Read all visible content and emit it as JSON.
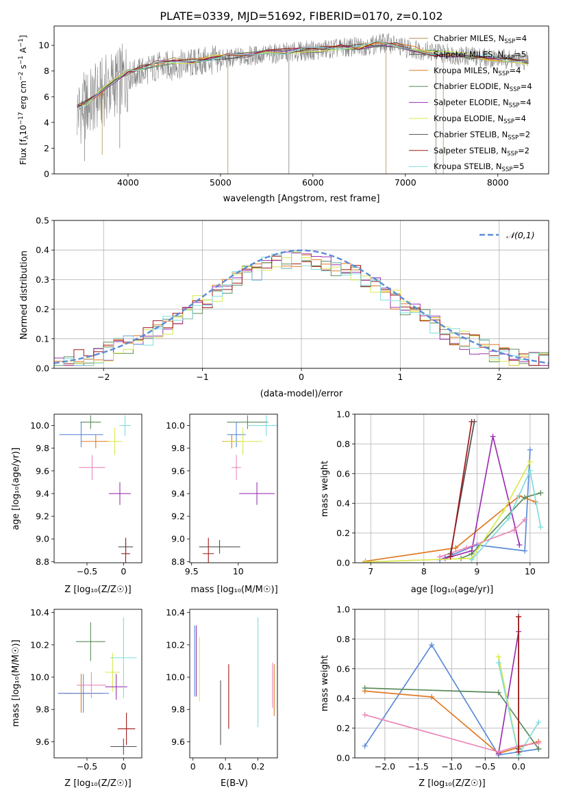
{
  "figure_title": "PLATE=0339, MJD=51692, FIBERID=0170, z=0.102",
  "chart_data": [
    {
      "type": "line",
      "id": "spectrum",
      "title": "PLATE=0339, MJD=51692, FIBERID=0170, z=0.102",
      "xlabel": "wavelength [Angstrom, rest frame]",
      "ylabel": "Flux [fλ10⁻¹⁷ erg cm⁻² s⁻¹ A⁻¹]",
      "xlim": [
        3200,
        8550
      ],
      "ylim": [
        0,
        11.5
      ],
      "xticks": [
        4000,
        5000,
        6000,
        7000,
        8000
      ],
      "yticks": [
        0,
        2,
        4,
        6,
        8,
        10
      ],
      "grid": false,
      "legend_position": "top-right",
      "data_trace": {
        "color": "#808080",
        "x_start": 3450,
        "x_end": 8330,
        "continuum": [
          [
            3450,
            4.8
          ],
          [
            3600,
            5.6
          ],
          [
            3800,
            6.8
          ],
          [
            4000,
            7.6
          ],
          [
            4300,
            8.3
          ],
          [
            4700,
            8.6
          ],
          [
            5000,
            8.9
          ],
          [
            5500,
            9.3
          ],
          [
            6000,
            9.6
          ],
          [
            6500,
            9.9
          ],
          [
            6800,
            10.2
          ],
          [
            7000,
            9.8
          ],
          [
            7300,
            9.5
          ],
          [
            7600,
            9.2
          ],
          [
            8000,
            9.0
          ],
          [
            8330,
            8.8
          ]
        ]
      },
      "series": [
        {
          "name": "Chabrier MILES, N_SSP=4",
          "color": "#b28b4e"
        },
        {
          "name": "Salpeter MILES, N_SSP=5",
          "color": "#6a6a6a"
        },
        {
          "name": "Kroupa MILES, N_SSP=4",
          "color": "#e07820"
        },
        {
          "name": "Chabrier ELODIE, N_SSP=4",
          "color": "#5a8a5a"
        },
        {
          "name": "Salpeter ELODIE, N_SSP=4",
          "color": "#9b30b0"
        },
        {
          "name": "Kroupa ELODIE, N_SSP=4",
          "color": "#d8e84a"
        },
        {
          "name": "Chabrier STELIB, N_SSP=2",
          "color": "#505050"
        },
        {
          "name": "Salpeter STELIB, N_SSP=2",
          "color": "#a01818"
        },
        {
          "name": "Kroupa STELIB, N_SSP=5",
          "color": "#7fdcdc"
        }
      ],
      "model_x": [
        3450,
        3550,
        3700,
        3850,
        4000,
        4150,
        4300,
        4500,
        4700,
        4900,
        5100,
        5300,
        5500,
        5700,
        5900,
        6100,
        6300,
        6500,
        6700,
        6900,
        7100,
        7300,
        7500,
        7700,
        7900,
        8100,
        8330
      ],
      "model_y": [
        5.2,
        5.5,
        6.3,
        7.2,
        7.9,
        8.3,
        8.6,
        8.8,
        8.8,
        9.0,
        9.2,
        9.3,
        9.4,
        9.5,
        9.6,
        9.7,
        9.8,
        9.9,
        10.1,
        10.0,
        9.7,
        9.4,
        9.3,
        9.1,
        9.0,
        8.9,
        8.7
      ]
    },
    {
      "type": "line",
      "id": "residuals",
      "xlabel": "(data-model)/error",
      "ylabel": "Normed distribution",
      "xlim": [
        -2.5,
        2.5
      ],
      "ylim": [
        0,
        0.5
      ],
      "xticks": [
        -2,
        -1,
        0,
        1,
        2
      ],
      "yticks": [
        0.0,
        0.1,
        0.2,
        0.3,
        0.4,
        0.5
      ],
      "grid": true,
      "legend_position": "top-right",
      "legend": "𝒩(0,1)",
      "gaussian_color": "#5b8ad8",
      "bin_width": 0.1,
      "hist_colors": [
        "#e07820",
        "#5a8a5a",
        "#9b30b0",
        "#d8e84a",
        "#a01818",
        "#7fdcdc"
      ]
    },
    {
      "type": "scatter",
      "id": "age-vs-metallicity",
      "xlabel": "Z [log₁₀(Z/Z☉)]",
      "ylabel": "age  [log₁₀(age/yr)]",
      "xlim": [
        -0.95,
        0.25
      ],
      "ylim": [
        8.79,
        10.1
      ],
      "xticks": [
        -0.5,
        0.0
      ],
      "yticks": [
        8.8,
        9.0,
        9.2,
        9.4,
        9.6,
        9.8,
        10.0
      ],
      "points": [
        {
          "x": -0.45,
          "y": 10.03,
          "xerr": 0.14,
          "yerr": 0.06,
          "color": "#5a8a5a"
        },
        {
          "x": -0.38,
          "y": 9.86,
          "xerr": 0.2,
          "yerr": 0.06,
          "color": "#e07820"
        },
        {
          "x": -0.58,
          "y": 9.92,
          "xerr": 0.3,
          "yerr": 0.11,
          "color": "#5b8ad8"
        },
        {
          "x": -0.43,
          "y": 9.63,
          "xerr": 0.18,
          "yerr": 0.11,
          "color": "#e887b8"
        },
        {
          "x": -0.12,
          "y": 9.86,
          "xerr": 0.1,
          "yerr": 0.12,
          "color": "#d8e84a"
        },
        {
          "x": -0.05,
          "y": 9.4,
          "xerr": 0.15,
          "yerr": 0.1,
          "color": "#9b30b0"
        },
        {
          "x": 0.02,
          "y": 10.0,
          "xerr": 0.08,
          "yerr": 0.09,
          "color": "#7fdcdc"
        },
        {
          "x": 0.03,
          "y": 8.93,
          "xerr": 0.1,
          "yerr": 0.06,
          "color": "#505050"
        },
        {
          "x": 0.03,
          "y": 8.87,
          "xerr": 0.06,
          "yerr": 0.14,
          "color": "#a01818"
        }
      ]
    },
    {
      "type": "scatter",
      "id": "age-vs-mass",
      "xlabel": "mass [log₁₀(M/M☉)]",
      "xlim": [
        9.48,
        10.42
      ],
      "ylim": [
        8.79,
        10.1
      ],
      "xticks": [
        9.5,
        10.0
      ],
      "yticks": [
        8.8,
        9.0,
        9.2,
        9.4,
        9.6,
        9.8,
        10.0
      ],
      "points": [
        {
          "x": 10.1,
          "y": 10.03,
          "xerr": 0.22,
          "yerr": 0.06,
          "color": "#5a8a5a"
        },
        {
          "x": 9.93,
          "y": 9.86,
          "xerr": 0.1,
          "yerr": 0.06,
          "color": "#e07820"
        },
        {
          "x": 9.98,
          "y": 9.92,
          "xerr": 0.1,
          "yerr": 0.11,
          "color": "#5b8ad8"
        },
        {
          "x": 9.98,
          "y": 9.63,
          "xerr": 0.05,
          "yerr": 0.11,
          "color": "#e887b8"
        },
        {
          "x": 10.05,
          "y": 9.86,
          "xerr": 0.21,
          "yerr": 0.12,
          "color": "#d8e84a"
        },
        {
          "x": 10.2,
          "y": 9.4,
          "xerr": 0.19,
          "yerr": 0.1,
          "color": "#9b30b0"
        },
        {
          "x": 10.3,
          "y": 10.0,
          "xerr": 0.2,
          "yerr": 0.09,
          "color": "#7fdcdc"
        },
        {
          "x": 9.8,
          "y": 8.93,
          "xerr": 0.22,
          "yerr": 0.06,
          "color": "#505050"
        },
        {
          "x": 9.68,
          "y": 8.87,
          "xerr": 0.06,
          "yerr": 0.14,
          "color": "#a01818"
        }
      ]
    },
    {
      "type": "line",
      "id": "weight-vs-age",
      "xlabel": "age  [log₁₀(age/yr)]",
      "ylabel": "mass weight",
      "xlim": [
        6.7,
        10.35
      ],
      "ylim": [
        0,
        1.0
      ],
      "xticks": [
        7,
        8,
        9,
        10
      ],
      "yticks": [
        0.0,
        0.2,
        0.4,
        0.6,
        0.8,
        1.0
      ],
      "grid": true,
      "series": [
        {
          "color": "#5b8ad8",
          "x": [
            8.3,
            9.0,
            9.9,
            10.0
          ],
          "y": [
            0.02,
            0.12,
            0.08,
            0.76
          ]
        },
        {
          "color": "#e07820",
          "x": [
            6.9,
            8.6,
            9.8,
            10.1
          ],
          "y": [
            0.01,
            0.1,
            0.45,
            0.41
          ]
        },
        {
          "color": "#5a8a5a",
          "x": [
            8.7,
            8.9,
            9.9,
            10.2
          ],
          "y": [
            0.03,
            0.06,
            0.44,
            0.47
          ]
        },
        {
          "color": "#9b30b0",
          "x": [
            8.4,
            8.9,
            9.3,
            9.8
          ],
          "y": [
            0.03,
            0.08,
            0.85,
            0.12
          ]
        },
        {
          "color": "#d8e84a",
          "x": [
            6.9,
            8.9,
            9.5,
            10.0
          ],
          "y": [
            0.005,
            0.03,
            0.35,
            0.68
          ]
        },
        {
          "color": "#7fdcdc",
          "x": [
            8.9,
            9.6,
            10.0,
            10.2
          ],
          "y": [
            0.02,
            0.3,
            0.62,
            0.24
          ]
        },
        {
          "color": "#e887b8",
          "x": [
            8.3,
            8.8,
            9.7,
            9.9
          ],
          "y": [
            0.04,
            0.1,
            0.22,
            0.29
          ]
        },
        {
          "color": "#505050",
          "x": [
            8.5,
            8.95
          ],
          "y": [
            0.06,
            0.95
          ]
        },
        {
          "color": "#a01818",
          "x": [
            8.5,
            8.9
          ],
          "y": [
            0.04,
            0.95
          ]
        }
      ]
    },
    {
      "type": "scatter",
      "id": "mass-vs-metallicity",
      "xlabel": "Z [log₁₀(Z/Z☉)]",
      "ylabel": "mass [log₁₀(M/M☉)]",
      "xlim": [
        -0.95,
        0.25
      ],
      "ylim": [
        9.5,
        10.42
      ],
      "xticks": [
        -0.5,
        0.0
      ],
      "yticks": [
        9.6,
        9.8,
        10.0,
        10.2,
        10.4
      ],
      "points": [
        {
          "x": -0.45,
          "y": 10.22,
          "xerr": 0.2,
          "yerr": 0.12,
          "color": "#5a8a5a"
        },
        {
          "x": -0.58,
          "y": 9.9,
          "xerr": 0.3,
          "yerr": 0.12,
          "color": "#e07820"
        },
        {
          "x": -0.55,
          "y": 9.9,
          "xerr": 0.35,
          "yerr": 0.12,
          "color": "#5b8ad8"
        },
        {
          "x": -0.44,
          "y": 9.95,
          "xerr": 0.2,
          "yerr": 0.08,
          "color": "#e887b8"
        },
        {
          "x": -0.15,
          "y": 10.03,
          "xerr": 0.1,
          "yerr": 0.12,
          "color": "#d8e84a"
        },
        {
          "x": -0.1,
          "y": 9.94,
          "xerr": 0.15,
          "yerr": 0.08,
          "color": "#9b30b0"
        },
        {
          "x": 0.0,
          "y": 10.12,
          "xerr": 0.18,
          "yerr": 0.25,
          "color": "#7fdcdc"
        },
        {
          "x": 0.0,
          "y": 9.57,
          "xerr": 0.18,
          "yerr": 0.05,
          "color": "#505050"
        },
        {
          "x": 0.04,
          "y": 9.68,
          "xerr": 0.12,
          "yerr": 0.1,
          "color": "#a01818"
        }
      ]
    },
    {
      "type": "scatter",
      "id": "mass-vs-extinction",
      "xlabel": "E(B-V)",
      "xlim": [
        -0.01,
        0.26
      ],
      "ylim": [
        9.5,
        10.42
      ],
      "xticks": [
        0.0,
        0.1,
        0.2
      ],
      "yticks": [
        9.6,
        9.8,
        10.0,
        10.2,
        10.4
      ],
      "points": [
        {
          "x": 0.005,
          "y": 10.1,
          "yerr": 0.22,
          "color": "#5b8ad8"
        },
        {
          "x": 0.01,
          "y": 10.1,
          "yerr": 0.22,
          "color": "#9b30b0"
        },
        {
          "x": 0.02,
          "y": 10.05,
          "yerr": 0.2,
          "color": "#d8e84a"
        },
        {
          "x": 0.085,
          "y": 9.78,
          "yerr": 0.2,
          "color": "#505050"
        },
        {
          "x": 0.11,
          "y": 9.88,
          "yerr": 0.2,
          "color": "#a01818"
        },
        {
          "x": 0.2,
          "y": 10.03,
          "yerr": 0.34,
          "color": "#7fdcdc"
        },
        {
          "x": 0.245,
          "y": 9.95,
          "yerr": 0.14,
          "color": "#e887b8"
        },
        {
          "x": 0.25,
          "y": 9.92,
          "yerr": 0.16,
          "color": "#e07820"
        }
      ]
    },
    {
      "type": "line",
      "id": "weight-vs-metallicity",
      "xlabel": "Z [log₁₀(Z/Z☉)]",
      "ylabel": "mass weight",
      "xlim": [
        -2.45,
        0.45
      ],
      "ylim": [
        0,
        1.0
      ],
      "xticks": [
        -2.0,
        -1.5,
        -1.0,
        -0.5,
        0.0
      ],
      "yticks": [
        0.0,
        0.2,
        0.4,
        0.6,
        0.8,
        1.0
      ],
      "grid": true,
      "series": [
        {
          "color": "#5b8ad8",
          "x": [
            -2.3,
            -1.3,
            -0.3,
            0.0,
            0.3
          ],
          "y": [
            0.08,
            0.76,
            0.02,
            0.04,
            0.06
          ]
        },
        {
          "color": "#e07820",
          "x": [
            -2.3,
            -1.3,
            -0.3,
            0.3
          ],
          "y": [
            0.45,
            0.41,
            0.03,
            0.11
          ]
        },
        {
          "color": "#5a8a5a",
          "x": [
            -2.3,
            -0.3,
            0.3
          ],
          "y": [
            0.47,
            0.44,
            0.06
          ]
        },
        {
          "color": "#9b30b0",
          "x": [
            -0.3,
            0.0
          ],
          "y": [
            0.03,
            0.85
          ]
        },
        {
          "color": "#d8e84a",
          "x": [
            -0.3,
            0.0
          ],
          "y": [
            0.68,
            0.02
          ]
        },
        {
          "color": "#7fdcdc",
          "x": [
            -0.3,
            0.0,
            0.3
          ],
          "y": [
            0.64,
            0.02,
            0.24
          ]
        },
        {
          "color": "#e887b8",
          "x": [
            -2.3,
            -0.3,
            0.0,
            0.3
          ],
          "y": [
            0.29,
            0.04,
            0.08,
            0.1
          ]
        },
        {
          "color": "#505050",
          "x": [
            0.0,
            0.0
          ],
          "y": [
            0.06,
            0.95
          ]
        },
        {
          "color": "#a01818",
          "x": [
            0.0,
            0.0
          ],
          "y": [
            0.04,
            0.95
          ]
        }
      ]
    }
  ]
}
